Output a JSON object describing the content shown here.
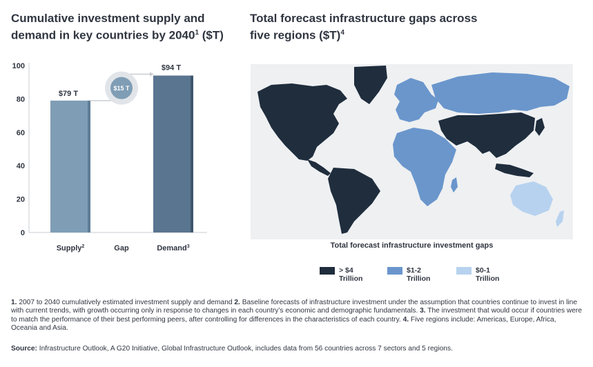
{
  "titles": {
    "left_main": "Cumulative investment supply and demand in key countries by 2040",
    "left_sup": "1",
    "left_tail": " ($T)",
    "right_main": "Total forecast infrastructure gaps across five regions ($T)",
    "right_sup": "4"
  },
  "chart_data": [
    {
      "type": "bar",
      "categories": [
        "Supply",
        "Gap",
        "Demand"
      ],
      "category_sups": [
        "2",
        "",
        "3"
      ],
      "values": [
        79,
        15,
        94
      ],
      "data_labels": [
        "$79 T",
        "$15 T",
        "$94 T"
      ],
      "ylim": [
        0,
        100
      ],
      "yticks": [
        0,
        20,
        40,
        60,
        80,
        100
      ],
      "colors": {
        "supply": "#7f9db5",
        "demand": "#5a7590",
        "gap_circle": "#7f9db5"
      }
    },
    {
      "type": "choropleth-map",
      "caption": "Total forecast infrastructure investment gaps",
      "legend": [
        {
          "line1": "> $4",
          "line2": "Trillion",
          "color": "#1f2d3d"
        },
        {
          "line1": "$1-2",
          "line2": "Trillion",
          "color": "#6a96cc"
        },
        {
          "line1": "$0-1",
          "line2": "Trillion",
          "color": "#b7d2ef"
        }
      ],
      "regions": [
        {
          "name": "Americas",
          "level": "> $4"
        },
        {
          "name": "Asia",
          "level": "> $4"
        },
        {
          "name": "Europe",
          "level": "$1-2"
        },
        {
          "name": "Africa",
          "level": "$1-2"
        },
        {
          "name": "Oceania",
          "level": "$0-1"
        }
      ]
    }
  ],
  "footnotes": {
    "n1": "1.",
    "t1": " 2007 to 2040 cumulatively estimated investment supply and demand ",
    "n2": "2.",
    "t2": " Baseline forecasts of infrastructure investment under the assumption that countries continue to invest in line with current trends, with growth occurring only in response to changes in each country’s economic and demographic fundamentals. ",
    "n3": "3.",
    "t3": " The investment that would occur if countries were to match the performance of their best performing peers, after controlling for differences in the characteristics of each country. ",
    "n4": "4.",
    "t4": " Five regions include: Americas, Europe, Africa, Oceania and Asia."
  },
  "source": {
    "label": "Source:",
    "text": " Infrastructure Outlook, A G20 Initiative, Global Infrastructure Outlook, includes data from 56 countries across 7 sectors and 5 regions."
  }
}
